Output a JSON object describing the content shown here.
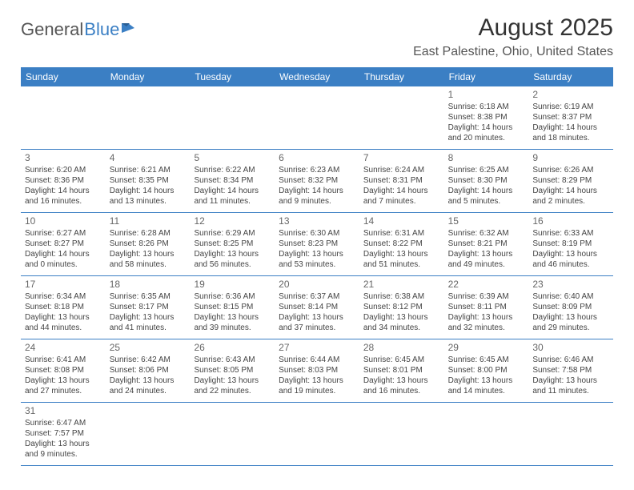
{
  "logo": {
    "part1": "General",
    "part2": "Blue"
  },
  "colors": {
    "brand": "#3b7fc4",
    "header_text": "#ffffff",
    "text": "#333333",
    "muted": "#555555"
  },
  "title": "August 2025",
  "location": "East Palestine, Ohio, United States",
  "days_of_week": [
    "Sunday",
    "Monday",
    "Tuesday",
    "Wednesday",
    "Thursday",
    "Friday",
    "Saturday"
  ],
  "weeks": [
    [
      null,
      null,
      null,
      null,
      null,
      {
        "d": "1",
        "sunrise": "6:18 AM",
        "sunset": "8:38 PM",
        "daylight": "14 hours and 20 minutes."
      },
      {
        "d": "2",
        "sunrise": "6:19 AM",
        "sunset": "8:37 PM",
        "daylight": "14 hours and 18 minutes."
      }
    ],
    [
      {
        "d": "3",
        "sunrise": "6:20 AM",
        "sunset": "8:36 PM",
        "daylight": "14 hours and 16 minutes."
      },
      {
        "d": "4",
        "sunrise": "6:21 AM",
        "sunset": "8:35 PM",
        "daylight": "14 hours and 13 minutes."
      },
      {
        "d": "5",
        "sunrise": "6:22 AM",
        "sunset": "8:34 PM",
        "daylight": "14 hours and 11 minutes."
      },
      {
        "d": "6",
        "sunrise": "6:23 AM",
        "sunset": "8:32 PM",
        "daylight": "14 hours and 9 minutes."
      },
      {
        "d": "7",
        "sunrise": "6:24 AM",
        "sunset": "8:31 PM",
        "daylight": "14 hours and 7 minutes."
      },
      {
        "d": "8",
        "sunrise": "6:25 AM",
        "sunset": "8:30 PM",
        "daylight": "14 hours and 5 minutes."
      },
      {
        "d": "9",
        "sunrise": "6:26 AM",
        "sunset": "8:29 PM",
        "daylight": "14 hours and 2 minutes."
      }
    ],
    [
      {
        "d": "10",
        "sunrise": "6:27 AM",
        "sunset": "8:27 PM",
        "daylight": "14 hours and 0 minutes."
      },
      {
        "d": "11",
        "sunrise": "6:28 AM",
        "sunset": "8:26 PM",
        "daylight": "13 hours and 58 minutes."
      },
      {
        "d": "12",
        "sunrise": "6:29 AM",
        "sunset": "8:25 PM",
        "daylight": "13 hours and 56 minutes."
      },
      {
        "d": "13",
        "sunrise": "6:30 AM",
        "sunset": "8:23 PM",
        "daylight": "13 hours and 53 minutes."
      },
      {
        "d": "14",
        "sunrise": "6:31 AM",
        "sunset": "8:22 PM",
        "daylight": "13 hours and 51 minutes."
      },
      {
        "d": "15",
        "sunrise": "6:32 AM",
        "sunset": "8:21 PM",
        "daylight": "13 hours and 49 minutes."
      },
      {
        "d": "16",
        "sunrise": "6:33 AM",
        "sunset": "8:19 PM",
        "daylight": "13 hours and 46 minutes."
      }
    ],
    [
      {
        "d": "17",
        "sunrise": "6:34 AM",
        "sunset": "8:18 PM",
        "daylight": "13 hours and 44 minutes."
      },
      {
        "d": "18",
        "sunrise": "6:35 AM",
        "sunset": "8:17 PM",
        "daylight": "13 hours and 41 minutes."
      },
      {
        "d": "19",
        "sunrise": "6:36 AM",
        "sunset": "8:15 PM",
        "daylight": "13 hours and 39 minutes."
      },
      {
        "d": "20",
        "sunrise": "6:37 AM",
        "sunset": "8:14 PM",
        "daylight": "13 hours and 37 minutes."
      },
      {
        "d": "21",
        "sunrise": "6:38 AM",
        "sunset": "8:12 PM",
        "daylight": "13 hours and 34 minutes."
      },
      {
        "d": "22",
        "sunrise": "6:39 AM",
        "sunset": "8:11 PM",
        "daylight": "13 hours and 32 minutes."
      },
      {
        "d": "23",
        "sunrise": "6:40 AM",
        "sunset": "8:09 PM",
        "daylight": "13 hours and 29 minutes."
      }
    ],
    [
      {
        "d": "24",
        "sunrise": "6:41 AM",
        "sunset": "8:08 PM",
        "daylight": "13 hours and 27 minutes."
      },
      {
        "d": "25",
        "sunrise": "6:42 AM",
        "sunset": "8:06 PM",
        "daylight": "13 hours and 24 minutes."
      },
      {
        "d": "26",
        "sunrise": "6:43 AM",
        "sunset": "8:05 PM",
        "daylight": "13 hours and 22 minutes."
      },
      {
        "d": "27",
        "sunrise": "6:44 AM",
        "sunset": "8:03 PM",
        "daylight": "13 hours and 19 minutes."
      },
      {
        "d": "28",
        "sunrise": "6:45 AM",
        "sunset": "8:01 PM",
        "daylight": "13 hours and 16 minutes."
      },
      {
        "d": "29",
        "sunrise": "6:45 AM",
        "sunset": "8:00 PM",
        "daylight": "13 hours and 14 minutes."
      },
      {
        "d": "30",
        "sunrise": "6:46 AM",
        "sunset": "7:58 PM",
        "daylight": "13 hours and 11 minutes."
      }
    ],
    [
      {
        "d": "31",
        "sunrise": "6:47 AM",
        "sunset": "7:57 PM",
        "daylight": "13 hours and 9 minutes."
      },
      null,
      null,
      null,
      null,
      null,
      null
    ]
  ],
  "labels": {
    "sunrise": "Sunrise:",
    "sunset": "Sunset:",
    "daylight": "Daylight:"
  }
}
